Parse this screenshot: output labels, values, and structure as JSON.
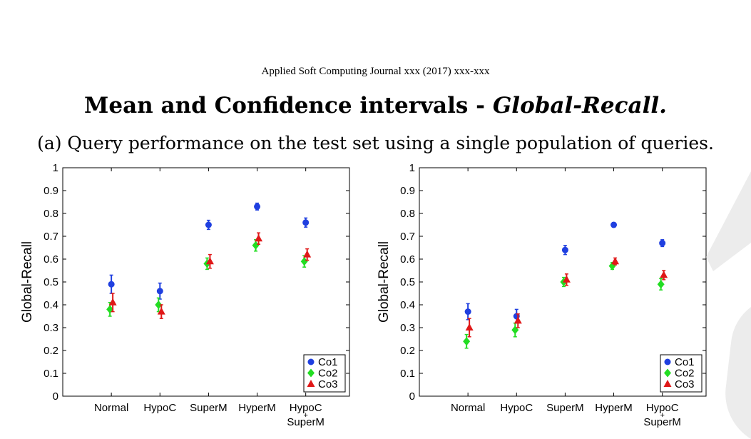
{
  "header": {
    "journal": "Applied Soft Computing Journal xxx (2017) xxx-xxx",
    "title_plain": "Mean and Confidence intervals - ",
    "title_italic": "Global-Recall.",
    "subtitle": "(a) Query performance on the test set using a single population of queries."
  },
  "colors": {
    "Co1": "#1f3fe0",
    "Co2": "#22dd22",
    "Co3": "#e01818"
  },
  "chart_data": [
    {
      "type": "scatter",
      "ylabel": "Global-Recall",
      "ylim": [
        0,
        1
      ],
      "yticks": [
        "0",
        "0.1",
        "0.2",
        "0.3",
        "0.4",
        "0.5",
        "0.6",
        "0.7",
        "0.8",
        "0.9",
        "1"
      ],
      "categories": [
        [
          "Normal"
        ],
        [
          "HypoC"
        ],
        [
          "SuperM"
        ],
        [
          "HyperM"
        ],
        [
          "HypoC",
          "+",
          "SuperM"
        ]
      ],
      "legend": {
        "position": "bottom-right",
        "entries": [
          "Co1",
          "Co2",
          "Co3"
        ]
      },
      "series": [
        {
          "name": "Co1",
          "marker": "circle",
          "values": [
            0.49,
            0.46,
            0.75,
            0.83,
            0.76
          ],
          "ci": [
            0.04,
            0.035,
            0.02,
            0.015,
            0.02
          ]
        },
        {
          "name": "Co2",
          "marker": "diamond",
          "values": [
            0.38,
            0.4,
            0.58,
            0.66,
            0.59
          ],
          "ci": [
            0.03,
            0.03,
            0.025,
            0.025,
            0.025
          ]
        },
        {
          "name": "Co3",
          "marker": "triangle",
          "values": [
            0.41,
            0.37,
            0.59,
            0.69,
            0.62
          ],
          "ci": [
            0.04,
            0.03,
            0.03,
            0.025,
            0.025
          ]
        }
      ]
    },
    {
      "type": "scatter",
      "ylabel": "Global-Recall",
      "ylim": [
        0,
        1
      ],
      "yticks": [
        "0",
        "0.1",
        "0.2",
        "0.3",
        "0.4",
        "0.5",
        "0.6",
        "0.7",
        "0.8",
        "0.9",
        "1"
      ],
      "categories": [
        [
          "Normal"
        ],
        [
          "HypoC"
        ],
        [
          "SuperM"
        ],
        [
          "HyperM"
        ],
        [
          "HypoC",
          "+",
          "SuperM"
        ]
      ],
      "legend": {
        "position": "bottom-right",
        "entries": [
          "Co1",
          "Co2",
          "Co3"
        ]
      },
      "series": [
        {
          "name": "Co1",
          "marker": "circle",
          "values": [
            0.37,
            0.35,
            0.64,
            0.75,
            0.67
          ],
          "ci": [
            0.035,
            0.03,
            0.02,
            0.01,
            0.015
          ]
        },
        {
          "name": "Co2",
          "marker": "diamond",
          "values": [
            0.24,
            0.29,
            0.5,
            0.57,
            0.49
          ],
          "ci": [
            0.03,
            0.03,
            0.02,
            0.015,
            0.025
          ]
        },
        {
          "name": "Co3",
          "marker": "triangle",
          "values": [
            0.3,
            0.33,
            0.51,
            0.59,
            0.53
          ],
          "ci": [
            0.04,
            0.03,
            0.025,
            0.015,
            0.02
          ]
        }
      ]
    }
  ]
}
